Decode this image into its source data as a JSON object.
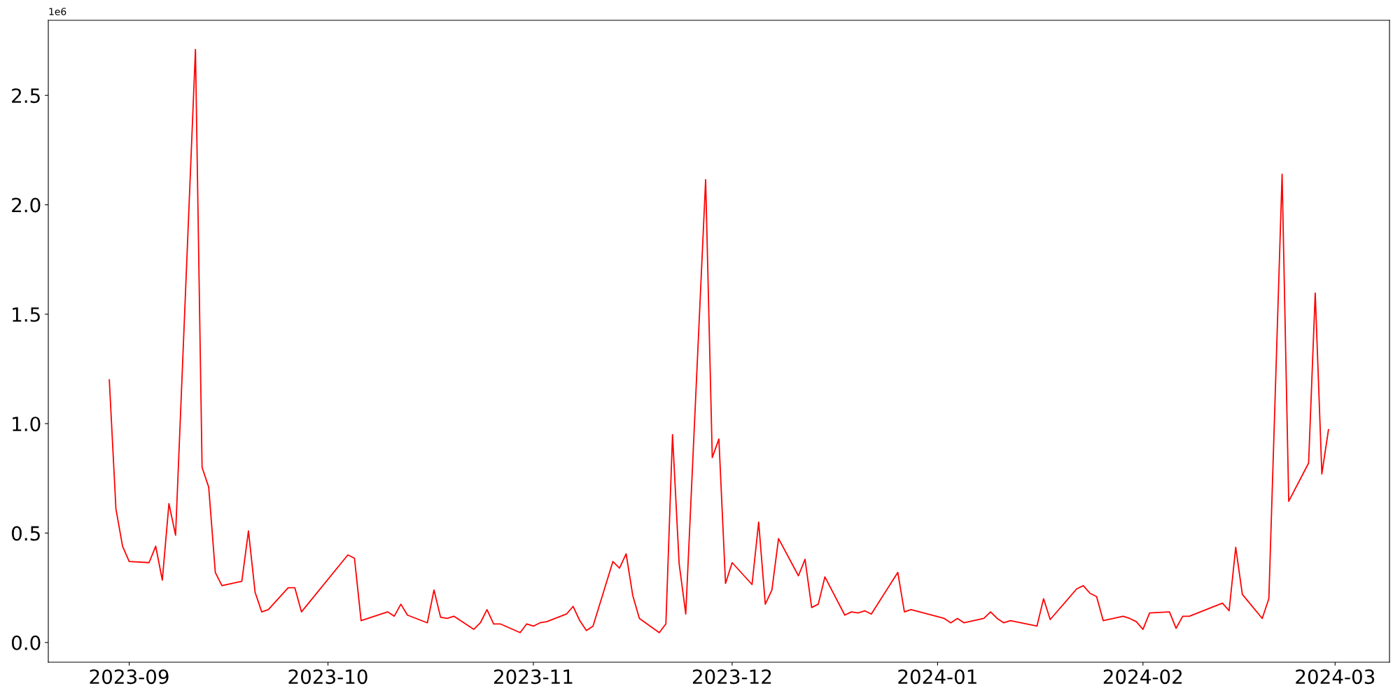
{
  "chart_data": {
    "type": "line",
    "x": [
      "2023-08-29",
      "2023-08-30",
      "2023-08-31",
      "2023-09-01",
      "2023-09-04",
      "2023-09-05",
      "2023-09-06",
      "2023-09-07",
      "2023-09-08",
      "2023-09-11",
      "2023-09-12",
      "2023-09-13",
      "2023-09-14",
      "2023-09-15",
      "2023-09-18",
      "2023-09-19",
      "2023-09-20",
      "2023-09-21",
      "2023-09-22",
      "2023-09-25",
      "2023-09-26",
      "2023-09-27",
      "2023-10-04",
      "2023-10-05",
      "2023-10-06",
      "2023-10-10",
      "2023-10-11",
      "2023-10-12",
      "2023-10-13",
      "2023-10-16",
      "2023-10-17",
      "2023-10-18",
      "2023-10-19",
      "2023-10-20",
      "2023-10-23",
      "2023-10-24",
      "2023-10-25",
      "2023-10-26",
      "2023-10-27",
      "2023-10-30",
      "2023-10-31",
      "2023-11-01",
      "2023-11-02",
      "2023-11-03",
      "2023-11-06",
      "2023-11-07",
      "2023-11-08",
      "2023-11-09",
      "2023-11-10",
      "2023-11-13",
      "2023-11-14",
      "2023-11-15",
      "2023-11-16",
      "2023-11-17",
      "2023-11-20",
      "2023-11-21",
      "2023-11-22",
      "2023-11-23",
      "2023-11-24",
      "2023-11-27",
      "2023-11-28",
      "2023-11-29",
      "2023-11-30",
      "2023-12-01",
      "2023-12-04",
      "2023-12-05",
      "2023-12-06",
      "2023-12-07",
      "2023-12-08",
      "2023-12-11",
      "2023-12-12",
      "2023-12-13",
      "2023-12-14",
      "2023-12-15",
      "2023-12-18",
      "2023-12-19",
      "2023-12-20",
      "2023-12-21",
      "2023-12-22",
      "2023-12-26",
      "2023-12-27",
      "2023-12-28",
      "2024-01-02",
      "2024-01-03",
      "2024-01-04",
      "2024-01-05",
      "2024-01-08",
      "2024-01-09",
      "2024-01-10",
      "2024-01-11",
      "2024-01-12",
      "2024-01-16",
      "2024-01-17",
      "2024-01-18",
      "2024-01-22",
      "2024-01-23",
      "2024-01-24",
      "2024-01-25",
      "2024-01-26",
      "2024-01-29",
      "2024-01-30",
      "2024-01-31",
      "2024-02-01",
      "2024-02-02",
      "2024-02-05",
      "2024-02-06",
      "2024-02-07",
      "2024-02-08",
      "2024-02-13",
      "2024-02-14",
      "2024-02-15",
      "2024-02-16",
      "2024-02-19",
      "2024-02-20",
      "2024-02-22",
      "2024-02-23",
      "2024-02-26",
      "2024-02-27",
      "2024-02-28",
      "2024-02-29"
    ],
    "series": [
      {
        "color": "#ff0000",
        "values": [
          1.2,
          0.61,
          0.44,
          0.37,
          0.365,
          0.44,
          0.285,
          0.635,
          0.49,
          2.71,
          0.8,
          0.71,
          0.32,
          0.26,
          0.28,
          0.51,
          0.23,
          0.14,
          0.15,
          0.25,
          0.25,
          0.14,
          0.4,
          0.385,
          0.1,
          0.14,
          0.12,
          0.175,
          0.125,
          0.09,
          0.24,
          0.115,
          0.11,
          0.12,
          0.06,
          0.09,
          0.15,
          0.085,
          0.085,
          0.045,
          0.085,
          0.075,
          0.09,
          0.095,
          0.13,
          0.165,
          0.1,
          0.055,
          0.075,
          0.37,
          0.34,
          0.405,
          0.215,
          0.11,
          0.045,
          0.085,
          0.95,
          0.36,
          0.13,
          2.115,
          0.845,
          0.93,
          0.27,
          0.365,
          0.265,
          0.55,
          0.175,
          0.24,
          0.475,
          0.305,
          0.38,
          0.16,
          0.175,
          0.3,
          0.125,
          0.14,
          0.135,
          0.145,
          0.13,
          0.32,
          0.14,
          0.15,
          0.11,
          0.09,
          0.11,
          0.09,
          0.11,
          0.14,
          0.11,
          0.09,
          0.1,
          0.075,
          0.2,
          0.105,
          0.245,
          0.26,
          0.225,
          0.21,
          0.1,
          0.12,
          0.11,
          0.095,
          0.06,
          0.135,
          0.14,
          0.065,
          0.12,
          0.12,
          0.18,
          0.145,
          0.435,
          0.22,
          0.11,
          0.2,
          2.14,
          0.645,
          0.82,
          1.597,
          0.77,
          0.973
        ]
      }
    ],
    "xlim": [
      "2023-08-19T19:00",
      "2024-03-09T05:00"
    ],
    "xticks": [
      {
        "value": "2023-09-01",
        "label": "2023-09"
      },
      {
        "value": "2023-10-01",
        "label": "2023-10"
      },
      {
        "value": "2023-11-01",
        "label": "2023-11"
      },
      {
        "value": "2023-12-01",
        "label": "2023-12"
      },
      {
        "value": "2024-01-01",
        "label": "2024-01"
      },
      {
        "value": "2024-02-01",
        "label": "2024-02"
      },
      {
        "value": "2024-03-01",
        "label": "2024-03"
      }
    ],
    "ylim": [
      -0.09,
      2.843
    ],
    "yticks": [
      {
        "value": 0,
        "label": "0.0"
      },
      0.5,
      {
        "value": 1,
        "label": "1.0"
      },
      1.5,
      {
        "value": 2,
        "label": "2.0"
      },
      2.5
    ],
    "annotations": [
      "1e6"
    ],
    "grid": false,
    "legend": false,
    "marker": "none",
    "line_style": "solid"
  }
}
